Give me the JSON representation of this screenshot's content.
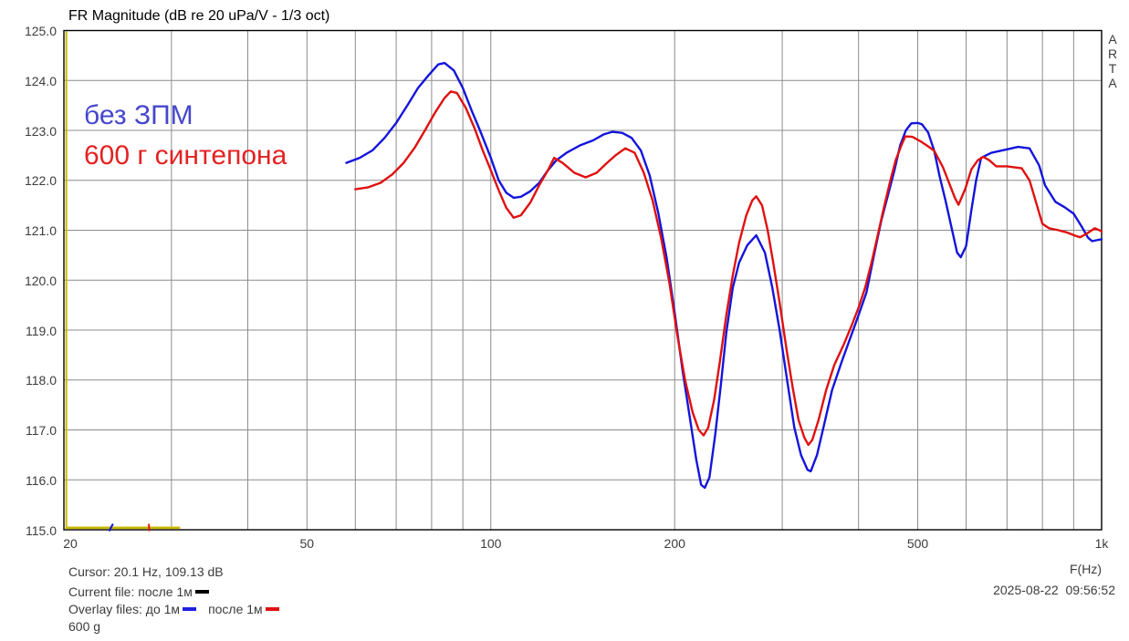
{
  "title": "FR Magnitude (dB re 20 uPa/V - 1/3 oct)",
  "watermark_letters": [
    "A",
    "R",
    "T",
    "A"
  ],
  "annotations": [
    {
      "text": "без ЗПМ",
      "color_key": "annotation_blue"
    },
    {
      "text": "600 г синтепона",
      "color_key": "annotation_red"
    }
  ],
  "footer": {
    "cursor_text": "Cursor: 20.1 Hz, 109.13 dB",
    "current_text": "Current file: после 1м",
    "overlay_text_1": "Overlay files: до 1м",
    "overlay_text_2": "после 1м",
    "note": "600 g",
    "freq_axis_label": "F(Hz)",
    "datetime": "2025-08-22  09:56:52"
  },
  "colors": {
    "curve_blue": "#1414DC",
    "curve_red": "#E01010",
    "annotation_blue": "#4646CE",
    "annotation_red": "#E42222",
    "cursor_yellow": "#C9B800",
    "grid": "#8C8C8C",
    "border": "#000000",
    "text": "#3C3C3C",
    "dash_current": "#000000",
    "dash_blue": "#2020E0",
    "dash_red": "#E01010"
  },
  "chart_data": {
    "type": "line",
    "title": "FR Magnitude (dB re 20 uPa/V - 1/3 oct)",
    "xlabel": "F(Hz)",
    "ylabel": "dB re 20 uPa/V",
    "x_scale": "log",
    "xlim": [
      20,
      1000
    ],
    "ylim": [
      115,
      125
    ],
    "grid": true,
    "y_ticks": [
      {
        "db": 125,
        "label": "125.0"
      },
      {
        "db": 124,
        "label": "124.0"
      },
      {
        "db": 123,
        "label": "123.0"
      },
      {
        "db": 122,
        "label": "122.0"
      },
      {
        "db": 121,
        "label": "121.0"
      },
      {
        "db": 120,
        "label": "120.0"
      },
      {
        "db": 119,
        "label": "119.0"
      },
      {
        "db": 118,
        "label": "118.0"
      },
      {
        "db": 117,
        "label": "117.0"
      },
      {
        "db": 116,
        "label": "116.0"
      },
      {
        "db": 115,
        "label": "115.0"
      }
    ],
    "x_ticks": [
      {
        "f": 20,
        "label": "20"
      },
      {
        "f": 50,
        "label": "50"
      },
      {
        "f": 100,
        "label": "100"
      },
      {
        "f": 200,
        "label": "200"
      },
      {
        "f": 500,
        "label": "500"
      },
      {
        "f": 1000,
        "label": "1k"
      }
    ],
    "grid_freqs": [
      30,
      40,
      50,
      60,
      70,
      80,
      90,
      100,
      200,
      300,
      400,
      500,
      600,
      700,
      800,
      900
    ],
    "grid_db": [
      116,
      117,
      118,
      119,
      120,
      121,
      122,
      123,
      124
    ],
    "cursor": {
      "f": 20.1,
      "db": 109.13
    },
    "bottom_clip_segment": {
      "from_f": 20.1,
      "to_f": 31
    },
    "clipped_marks": [
      {
        "f": 23.9,
        "color_key": "curve_blue",
        "shape": "slant"
      },
      {
        "f": 27.6,
        "color_key": "curve_red",
        "shape": "vertical"
      }
    ],
    "series": [
      {
        "name": "до 1м (без ЗПМ)",
        "color": "#1414DC",
        "points": [
          [
            58,
            122.35
          ],
          [
            61,
            122.45
          ],
          [
            64,
            122.6
          ],
          [
            67,
            122.85
          ],
          [
            70,
            123.15
          ],
          [
            73,
            123.5
          ],
          [
            76,
            123.85
          ],
          [
            79,
            124.1
          ],
          [
            82,
            124.32
          ],
          [
            84,
            124.35
          ],
          [
            87,
            124.2
          ],
          [
            90,
            123.85
          ],
          [
            93,
            123.4
          ],
          [
            96,
            123.0
          ],
          [
            100,
            122.45
          ],
          [
            103,
            122.0
          ],
          [
            106,
            121.75
          ],
          [
            109,
            121.65
          ],
          [
            112,
            121.67
          ],
          [
            116,
            121.78
          ],
          [
            120,
            121.95
          ],
          [
            124,
            122.2
          ],
          [
            128,
            122.4
          ],
          [
            133,
            122.55
          ],
          [
            140,
            122.7
          ],
          [
            147,
            122.8
          ],
          [
            153,
            122.92
          ],
          [
            158,
            122.97
          ],
          [
            164,
            122.95
          ],
          [
            170,
            122.85
          ],
          [
            176,
            122.6
          ],
          [
            182,
            122.1
          ],
          [
            188,
            121.35
          ],
          [
            194,
            120.45
          ],
          [
            200,
            119.35
          ],
          [
            206,
            118.2
          ],
          [
            212,
            117.2
          ],
          [
            217,
            116.4
          ],
          [
            221,
            115.9
          ],
          [
            224,
            115.84
          ],
          [
            228,
            116.05
          ],
          [
            233,
            116.9
          ],
          [
            238,
            117.9
          ],
          [
            243,
            118.95
          ],
          [
            249,
            119.85
          ],
          [
            255,
            120.35
          ],
          [
            263,
            120.7
          ],
          [
            272,
            120.9
          ],
          [
            281,
            120.55
          ],
          [
            289,
            119.85
          ],
          [
            297,
            119.0
          ],
          [
            306,
            117.95
          ],
          [
            314,
            117.05
          ],
          [
            322,
            116.5
          ],
          [
            330,
            116.2
          ],
          [
            334,
            116.17
          ],
          [
            342,
            116.5
          ],
          [
            352,
            117.15
          ],
          [
            362,
            117.8
          ],
          [
            375,
            118.35
          ],
          [
            388,
            118.85
          ],
          [
            400,
            119.3
          ],
          [
            412,
            119.75
          ],
          [
            424,
            120.5
          ],
          [
            436,
            121.2
          ],
          [
            448,
            121.75
          ],
          [
            458,
            122.2
          ],
          [
            468,
            122.7
          ],
          [
            478,
            123.0
          ],
          [
            488,
            123.14
          ],
          [
            500,
            123.15
          ],
          [
            508,
            123.12
          ],
          [
            520,
            122.96
          ],
          [
            532,
            122.59
          ],
          [
            543,
            122.08
          ],
          [
            555,
            121.6
          ],
          [
            568,
            121.05
          ],
          [
            580,
            120.55
          ],
          [
            588,
            120.46
          ],
          [
            600,
            120.68
          ],
          [
            612,
            121.4
          ],
          [
            623,
            122.0
          ],
          [
            635,
            122.45
          ],
          [
            660,
            122.55
          ],
          [
            700,
            122.62
          ],
          [
            730,
            122.67
          ],
          [
            762,
            122.64
          ],
          [
            790,
            122.3
          ],
          [
            808,
            121.9
          ],
          [
            840,
            121.57
          ],
          [
            870,
            121.46
          ],
          [
            900,
            121.33
          ],
          [
            930,
            121.05
          ],
          [
            950,
            120.85
          ],
          [
            965,
            120.78
          ],
          [
            980,
            120.8
          ],
          [
            1000,
            120.82
          ]
        ]
      },
      {
        "name": "после 1м (600 г синтепона)",
        "color": "#E01010",
        "points": [
          [
            60,
            121.82
          ],
          [
            63,
            121.86
          ],
          [
            66,
            121.95
          ],
          [
            69,
            122.12
          ],
          [
            72,
            122.35
          ],
          [
            75,
            122.65
          ],
          [
            78,
            123.0
          ],
          [
            81,
            123.35
          ],
          [
            84,
            123.65
          ],
          [
            86,
            123.78
          ],
          [
            88,
            123.75
          ],
          [
            91,
            123.45
          ],
          [
            94,
            123.05
          ],
          [
            97,
            122.6
          ],
          [
            100,
            122.2
          ],
          [
            103,
            121.8
          ],
          [
            106,
            121.45
          ],
          [
            109,
            121.25
          ],
          [
            112,
            121.3
          ],
          [
            116,
            121.55
          ],
          [
            120,
            121.9
          ],
          [
            124,
            122.2
          ],
          [
            127,
            122.45
          ],
          [
            131,
            122.35
          ],
          [
            137,
            122.15
          ],
          [
            143,
            122.06
          ],
          [
            149,
            122.15
          ],
          [
            155,
            122.35
          ],
          [
            160,
            122.5
          ],
          [
            166,
            122.64
          ],
          [
            172,
            122.55
          ],
          [
            178,
            122.15
          ],
          [
            184,
            121.6
          ],
          [
            190,
            120.85
          ],
          [
            196,
            119.95
          ],
          [
            202,
            118.9
          ],
          [
            208,
            118.0
          ],
          [
            214,
            117.35
          ],
          [
            219,
            117.0
          ],
          [
            223,
            116.89
          ],
          [
            227,
            117.05
          ],
          [
            232,
            117.6
          ],
          [
            237,
            118.35
          ],
          [
            243,
            119.3
          ],
          [
            249,
            120.1
          ],
          [
            255,
            120.75
          ],
          [
            262,
            121.3
          ],
          [
            268,
            121.6
          ],
          [
            272,
            121.68
          ],
          [
            278,
            121.5
          ],
          [
            284,
            121.0
          ],
          [
            290,
            120.35
          ],
          [
            297,
            119.55
          ],
          [
            305,
            118.6
          ],
          [
            312,
            117.85
          ],
          [
            319,
            117.2
          ],
          [
            326,
            116.85
          ],
          [
            331,
            116.7
          ],
          [
            336,
            116.8
          ],
          [
            344,
            117.2
          ],
          [
            354,
            117.8
          ],
          [
            365,
            118.3
          ],
          [
            378,
            118.7
          ],
          [
            390,
            119.1
          ],
          [
            400,
            119.45
          ],
          [
            410,
            119.85
          ],
          [
            420,
            120.35
          ],
          [
            430,
            120.9
          ],
          [
            440,
            121.45
          ],
          [
            450,
            121.95
          ],
          [
            460,
            122.4
          ],
          [
            470,
            122.7
          ],
          [
            477,
            122.88
          ],
          [
            490,
            122.87
          ],
          [
            507,
            122.77
          ],
          [
            520,
            122.68
          ],
          [
            532,
            122.59
          ],
          [
            550,
            122.26
          ],
          [
            565,
            121.89
          ],
          [
            575,
            121.65
          ],
          [
            583,
            121.51
          ],
          [
            598,
            121.83
          ],
          [
            612,
            122.22
          ],
          [
            627,
            122.4
          ],
          [
            640,
            122.47
          ],
          [
            655,
            122.4
          ],
          [
            672,
            122.28
          ],
          [
            700,
            122.28
          ],
          [
            740,
            122.24
          ],
          [
            762,
            122.0
          ],
          [
            775,
            121.7
          ],
          [
            790,
            121.35
          ],
          [
            800,
            121.13
          ],
          [
            820,
            121.04
          ],
          [
            850,
            121.0
          ],
          [
            880,
            120.95
          ],
          [
            905,
            120.89
          ],
          [
            922,
            120.86
          ],
          [
            945,
            120.93
          ],
          [
            975,
            121.04
          ],
          [
            1000,
            120.98
          ]
        ]
      }
    ]
  }
}
